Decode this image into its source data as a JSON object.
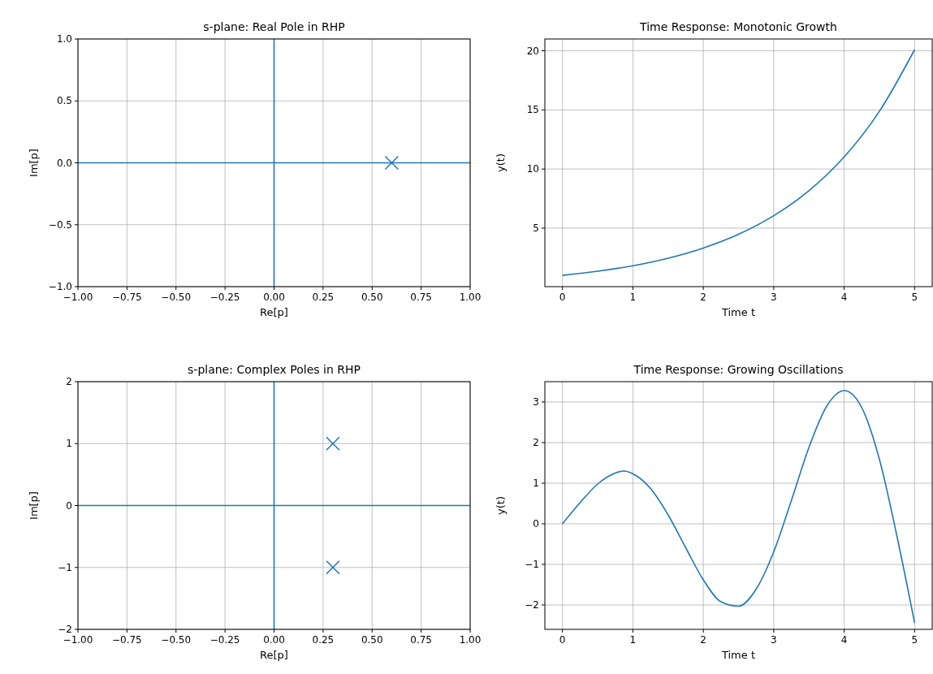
{
  "chart_data": [
    {
      "type": "line",
      "title": "s-plane: Real Pole in RHP",
      "xlabel": "Re[p]",
      "ylabel": "Im[p]",
      "xlim": [
        -1,
        1
      ],
      "ylim": [
        -1,
        1
      ],
      "series": [
        {
          "color": "#1f77b4",
          "x": [
            -1,
            1
          ],
          "values": [
            0,
            0
          ]
        },
        {
          "color": "#1f77b4",
          "x": [
            0,
            0
          ],
          "values": [
            -1,
            1
          ]
        },
        {
          "type": "scatter",
          "marker": "cross",
          "color": "#1f77b4",
          "x": [
            0.6
          ],
          "values": [
            0
          ]
        }
      ],
      "xticks": [
        {
          "value": -1,
          "label": "−1.00"
        },
        {
          "value": -0.75,
          "label": "−0.75"
        },
        {
          "value": -0.5,
          "label": "−0.50"
        },
        {
          "value": -0.25,
          "label": "−0.25"
        },
        {
          "value": 0,
          "label": "0.00"
        },
        {
          "value": 0.25,
          "label": "0.25"
        },
        {
          "value": 0.5,
          "label": "0.50"
        },
        {
          "value": 0.75,
          "label": "0.75"
        },
        {
          "value": 1,
          "label": "1.00"
        }
      ],
      "yticks": [
        {
          "value": -1,
          "label": "−1.0"
        },
        {
          "value": -0.5,
          "label": "−0.5"
        },
        {
          "value": 0,
          "label": "0.0"
        },
        {
          "value": 0.5,
          "label": "0.5"
        },
        {
          "value": 1,
          "label": "1.0"
        }
      ],
      "grid": true
    },
    {
      "type": "line",
      "title": "Time Response: Monotonic Growth",
      "xlabel": "Time t",
      "ylabel": "y(t)",
      "x": [
        0,
        0.5,
        1,
        1.5,
        2,
        2.5,
        3,
        3.5,
        4,
        4.5,
        5
      ],
      "values": [
        1,
        1.35,
        1.82,
        2.46,
        3.32,
        4.48,
        6.05,
        8.17,
        11.02,
        14.88,
        20.09
      ],
      "color": "#1f77b4",
      "xlim": [
        -0.25,
        5.25
      ],
      "ylim": [
        0.05,
        21
      ],
      "xticks": [
        0,
        1,
        2,
        3,
        4,
        5
      ],
      "yticks": [
        5,
        10,
        15,
        20
      ],
      "grid": true
    },
    {
      "type": "line",
      "title": "s-plane: Complex Poles in RHP",
      "xlabel": "Re[p]",
      "ylabel": "Im[p]",
      "xlim": [
        -1,
        1
      ],
      "ylim": [
        -2,
        2
      ],
      "series": [
        {
          "color": "#1f77b4",
          "x": [
            -1,
            1
          ],
          "values": [
            0,
            0
          ]
        },
        {
          "color": "#1f77b4",
          "x": [
            0,
            0
          ],
          "values": [
            -2,
            2
          ]
        },
        {
          "type": "scatter",
          "marker": "cross",
          "color": "#1f77b4",
          "x": [
            0.3,
            0.3
          ],
          "values": [
            1,
            -1
          ]
        }
      ],
      "xticks": [
        {
          "value": -1,
          "label": "−1.00"
        },
        {
          "value": -0.75,
          "label": "−0.75"
        },
        {
          "value": -0.5,
          "label": "−0.50"
        },
        {
          "value": -0.25,
          "label": "−0.25"
        },
        {
          "value": 0,
          "label": "0.00"
        },
        {
          "value": 0.25,
          "label": "0.25"
        },
        {
          "value": 0.5,
          "label": "0.50"
        },
        {
          "value": 0.75,
          "label": "0.75"
        },
        {
          "value": 1,
          "label": "1.00"
        }
      ],
      "yticks": [
        {
          "value": -2,
          "label": "−2"
        },
        {
          "value": -1,
          "label": "−1"
        },
        0,
        1,
        2
      ],
      "grid": true
    },
    {
      "type": "line",
      "title": "Time Response: Growing Oscillations",
      "xlabel": "Time t",
      "ylabel": "y(t)",
      "x": [
        0,
        0.25,
        0.5,
        0.75,
        0.875,
        1,
        1.25,
        1.5,
        1.75,
        2,
        2.25,
        2.5,
        2.75,
        3,
        3.25,
        3.5,
        3.75,
        4,
        4.25,
        4.5,
        4.75,
        5
      ],
      "values": [
        0,
        0.52,
        0.98,
        1.25,
        1.3,
        1.23,
        0.87,
        0.22,
        -0.59,
        -1.38,
        -1.92,
        -2.03,
        -1.61,
        -0.69,
        0.57,
        1.88,
        2.89,
        3.28,
        2.86,
        1.59,
        -0.31,
        -2.44
      ],
      "color": "#1f77b4",
      "xlim": [
        -0.25,
        5.25
      ],
      "ylim": [
        -2.6,
        3.5
      ],
      "xticks": [
        0,
        1,
        2,
        3,
        4,
        5
      ],
      "yticks": [
        {
          "value": -2,
          "label": "−2"
        },
        {
          "value": -1,
          "label": "−1"
        },
        0,
        1,
        2,
        3
      ],
      "grid": true
    }
  ]
}
